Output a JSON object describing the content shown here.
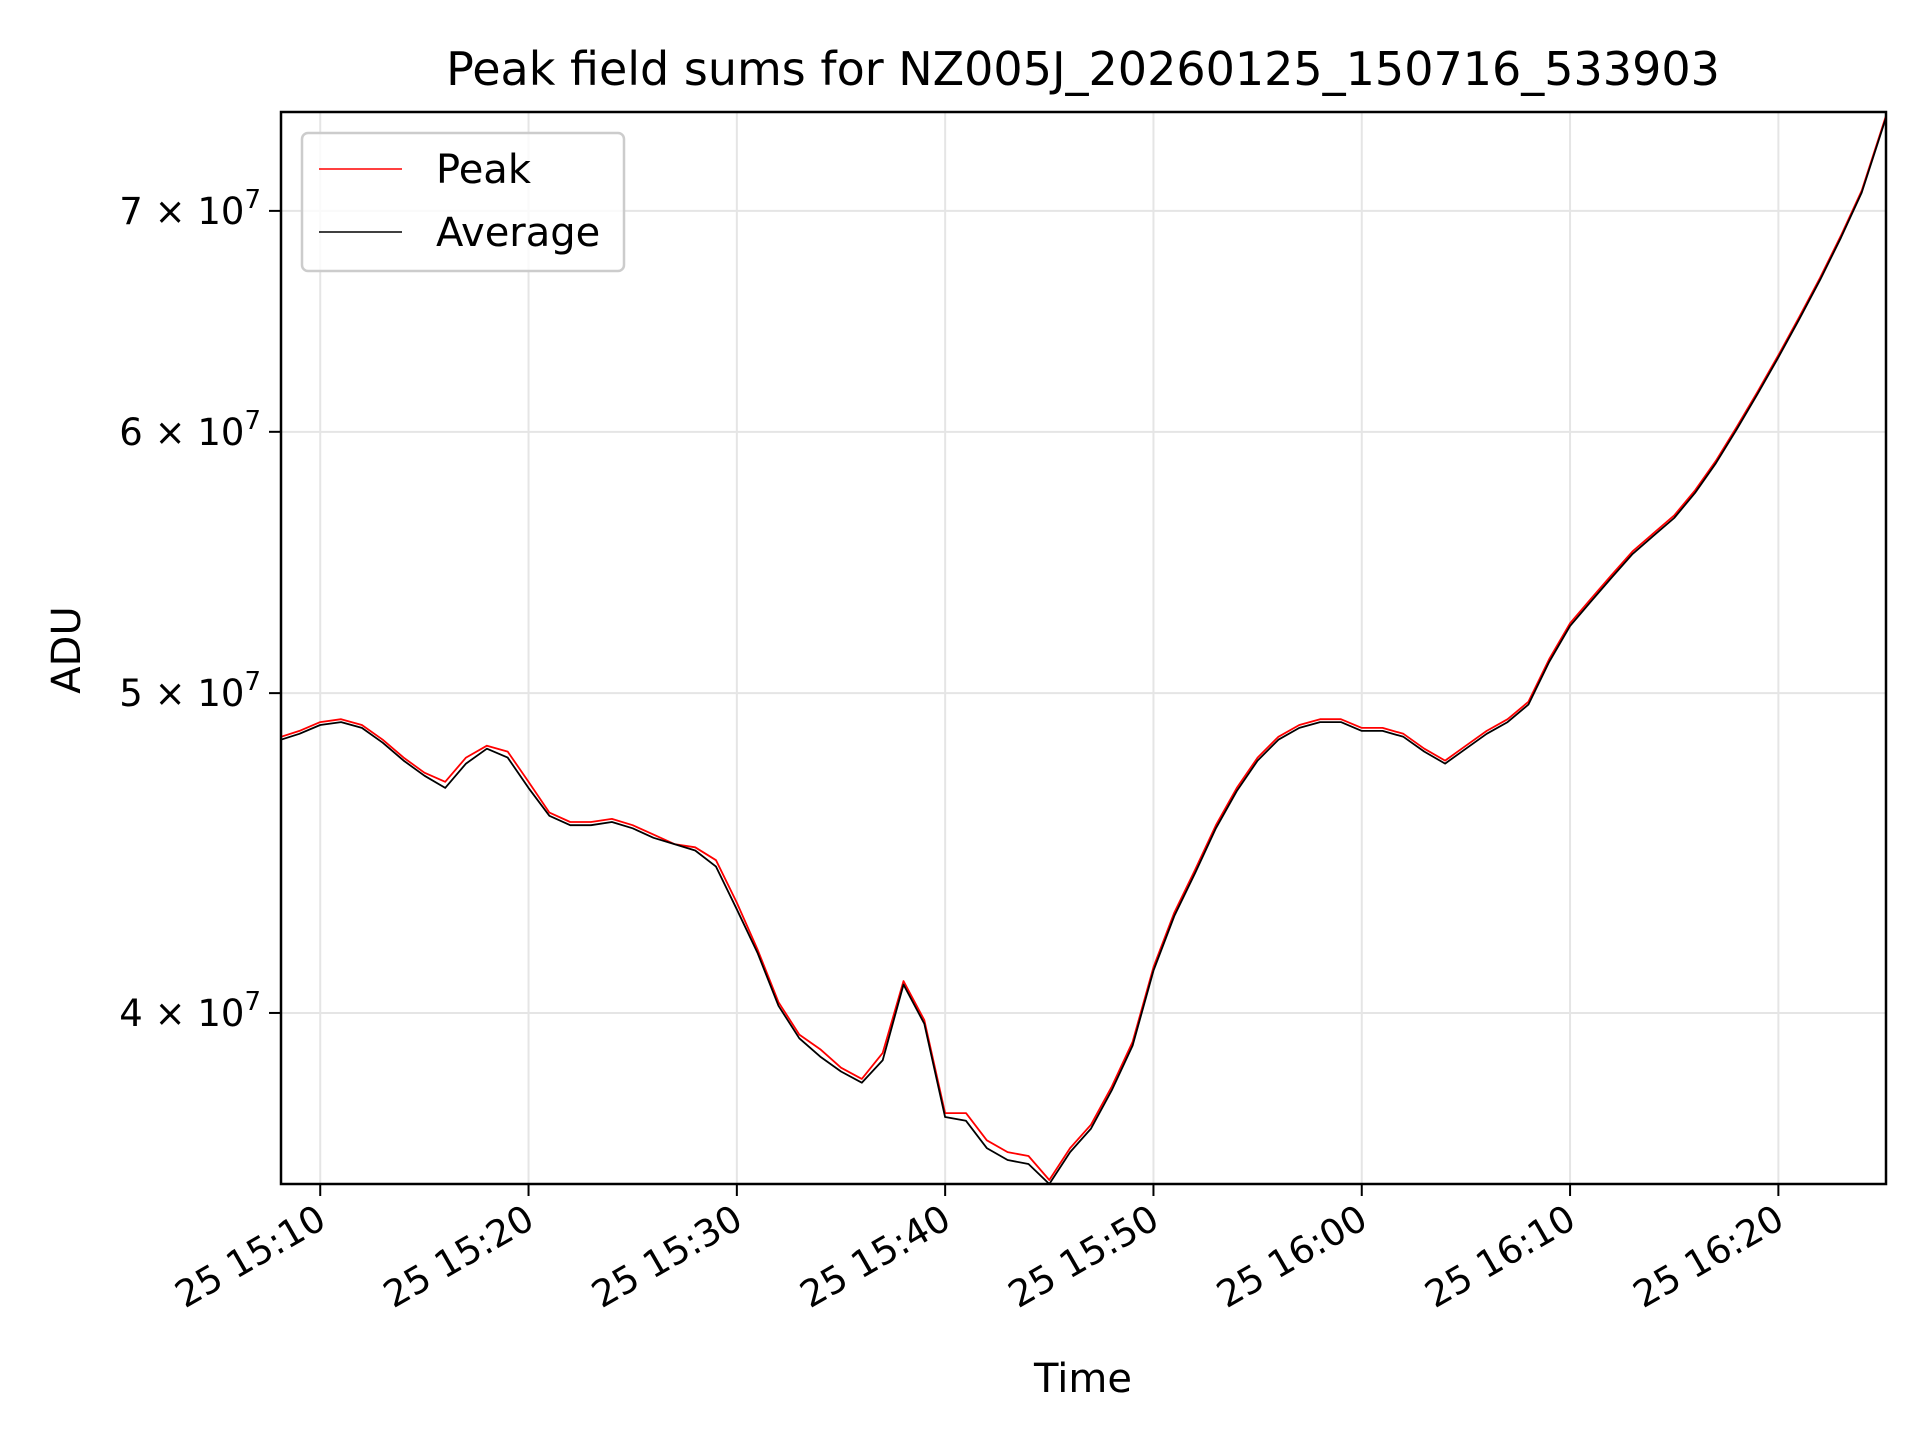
{
  "chart_data": {
    "type": "line",
    "title": "Peak field sums for NZ005J_20260125_150716_533903",
    "xlabel": "Time",
    "ylabel": "ADU",
    "y_scale": "log",
    "xlim": [
      "2026-01-25 15:08:07",
      "2026-01-25 16:25:10"
    ],
    "ylim": [
      35500000,
      75000000
    ],
    "grid": true,
    "legend_position": "upper left",
    "x_ticks": [
      "2026-01-25 15:10",
      "2026-01-25 15:20",
      "2026-01-25 15:30",
      "2026-01-25 15:40",
      "2026-01-25 15:50",
      "2026-01-25 16:00",
      "2026-01-25 16:10",
      "2026-01-25 16:20"
    ],
    "x_tick_labels": [
      "25 15:10",
      "25 15:20",
      "25 15:30",
      "25 15:40",
      "25 15:50",
      "25 16:00",
      "25 16:10",
      "25 16:20"
    ],
    "y_ticks": [
      40000000,
      50000000,
      60000000,
      70000000
    ],
    "y_tick_labels": [
      {
        "mantissa": "4",
        "exponent": "7"
      },
      {
        "mantissa": "5",
        "exponent": "7"
      },
      {
        "mantissa": "6",
        "exponent": "7"
      },
      {
        "mantissa": "7",
        "exponent": "7"
      }
    ],
    "series": [
      {
        "name": "Peak",
        "color": "#ff0000",
        "x": [
          "2026-01-25 15:08:07",
          "2026-01-25 15:09:00",
          "2026-01-25 15:10:00",
          "2026-01-25 15:11:00",
          "2026-01-25 15:12:00",
          "2026-01-25 15:13:00",
          "2026-01-25 15:14:00",
          "2026-01-25 15:15:00",
          "2026-01-25 15:16:00",
          "2026-01-25 15:17:00",
          "2026-01-25 15:18:00",
          "2026-01-25 15:19:00",
          "2026-01-25 15:20:00",
          "2026-01-25 15:21:00",
          "2026-01-25 15:22:00",
          "2026-01-25 15:23:00",
          "2026-01-25 15:24:00",
          "2026-01-25 15:25:00",
          "2026-01-25 15:26:00",
          "2026-01-25 15:27:00",
          "2026-01-25 15:28:00",
          "2026-01-25 15:29:00",
          "2026-01-25 15:30:00",
          "2026-01-25 15:31:00",
          "2026-01-25 15:32:00",
          "2026-01-25 15:33:00",
          "2026-01-25 15:34:00",
          "2026-01-25 15:35:00",
          "2026-01-25 15:36:00",
          "2026-01-25 15:37:00",
          "2026-01-25 15:38:00",
          "2026-01-25 15:39:00",
          "2026-01-25 15:40:00",
          "2026-01-25 15:41:00",
          "2026-01-25 15:42:00",
          "2026-01-25 15:43:00",
          "2026-01-25 15:44:00",
          "2026-01-25 15:45:00",
          "2026-01-25 15:46:00",
          "2026-01-25 15:47:00",
          "2026-01-25 15:48:00",
          "2026-01-25 15:49:00",
          "2026-01-25 15:50:00",
          "2026-01-25 15:51:00",
          "2026-01-25 15:52:00",
          "2026-01-25 15:53:00",
          "2026-01-25 15:54:00",
          "2026-01-25 15:55:00",
          "2026-01-25 15:56:00",
          "2026-01-25 15:57:00",
          "2026-01-25 15:58:00",
          "2026-01-25 15:59:00",
          "2026-01-25 16:00:00",
          "2026-01-25 16:01:00",
          "2026-01-25 16:02:00",
          "2026-01-25 16:03:00",
          "2026-01-25 16:04:00",
          "2026-01-25 16:05:00",
          "2026-01-25 16:06:00",
          "2026-01-25 16:07:00",
          "2026-01-25 16:08:00",
          "2026-01-25 16:09:00",
          "2026-01-25 16:10:00",
          "2026-01-25 16:11:00",
          "2026-01-25 16:12:00",
          "2026-01-25 16:13:00",
          "2026-01-25 16:14:00",
          "2026-01-25 16:15:00",
          "2026-01-25 16:16:00",
          "2026-01-25 16:17:00",
          "2026-01-25 16:18:00",
          "2026-01-25 16:19:00",
          "2026-01-25 16:20:00",
          "2026-01-25 16:21:00",
          "2026-01-25 16:22:00",
          "2026-01-25 16:23:00",
          "2026-01-25 16:24:00",
          "2026-01-25 16:25:10"
        ],
        "y": [
          48500000,
          48700000,
          49000000,
          49100000,
          48900000,
          48400000,
          47800000,
          47300000,
          47000000,
          47800000,
          48200000,
          48000000,
          47000000,
          46000000,
          45700000,
          45700000,
          45800000,
          45600000,
          45300000,
          45000000,
          44900000,
          44500000,
          43200000,
          41800000,
          40300000,
          39400000,
          39000000,
          38500000,
          38200000,
          38900000,
          40900000,
          39800000,
          37300000,
          37300000,
          36600000,
          36300000,
          36200000,
          35600000,
          36400000,
          37000000,
          38000000,
          39200000,
          41300000,
          42900000,
          44200000,
          45600000,
          46800000,
          47800000,
          48500000,
          48900000,
          49100000,
          49100000,
          48800000,
          48800000,
          48600000,
          48100000,
          47700000,
          48200000,
          48700000,
          49100000,
          49700000,
          51200000,
          52500000,
          53400000,
          54300000,
          55200000,
          55900000,
          56600000,
          57600000,
          58800000,
          60200000,
          61700000,
          63300000,
          65000000,
          66800000,
          68800000,
          71000000,
          74800000
        ]
      },
      {
        "name": "Average",
        "color": "#000000",
        "x": [
          "2026-01-25 15:08:07",
          "2026-01-25 15:09:00",
          "2026-01-25 15:10:00",
          "2026-01-25 15:11:00",
          "2026-01-25 15:12:00",
          "2026-01-25 15:13:00",
          "2026-01-25 15:14:00",
          "2026-01-25 15:15:00",
          "2026-01-25 15:16:00",
          "2026-01-25 15:17:00",
          "2026-01-25 15:18:00",
          "2026-01-25 15:19:00",
          "2026-01-25 15:20:00",
          "2026-01-25 15:21:00",
          "2026-01-25 15:22:00",
          "2026-01-25 15:23:00",
          "2026-01-25 15:24:00",
          "2026-01-25 15:25:00",
          "2026-01-25 15:26:00",
          "2026-01-25 15:27:00",
          "2026-01-25 15:28:00",
          "2026-01-25 15:29:00",
          "2026-01-25 15:30:00",
          "2026-01-25 15:31:00",
          "2026-01-25 15:32:00",
          "2026-01-25 15:33:00",
          "2026-01-25 15:34:00",
          "2026-01-25 15:35:00",
          "2026-01-25 15:36:00",
          "2026-01-25 15:37:00",
          "2026-01-25 15:38:00",
          "2026-01-25 15:39:00",
          "2026-01-25 15:40:00",
          "2026-01-25 15:41:00",
          "2026-01-25 15:42:00",
          "2026-01-25 15:43:00",
          "2026-01-25 15:44:00",
          "2026-01-25 15:45:00",
          "2026-01-25 15:46:00",
          "2026-01-25 15:47:00",
          "2026-01-25 15:48:00",
          "2026-01-25 15:49:00",
          "2026-01-25 15:50:00",
          "2026-01-25 15:51:00",
          "2026-01-25 15:52:00",
          "2026-01-25 15:53:00",
          "2026-01-25 15:54:00",
          "2026-01-25 15:55:00",
          "2026-01-25 15:56:00",
          "2026-01-25 15:57:00",
          "2026-01-25 15:58:00",
          "2026-01-25 15:59:00",
          "2026-01-25 16:00:00",
          "2026-01-25 16:01:00",
          "2026-01-25 16:02:00",
          "2026-01-25 16:03:00",
          "2026-01-25 16:04:00",
          "2026-01-25 16:05:00",
          "2026-01-25 16:06:00",
          "2026-01-25 16:07:00",
          "2026-01-25 16:08:00",
          "2026-01-25 16:09:00",
          "2026-01-25 16:10:00",
          "2026-01-25 16:11:00",
          "2026-01-25 16:12:00",
          "2026-01-25 16:13:00",
          "2026-01-25 16:14:00",
          "2026-01-25 16:15:00",
          "2026-01-25 16:16:00",
          "2026-01-25 16:17:00",
          "2026-01-25 16:18:00",
          "2026-01-25 16:19:00",
          "2026-01-25 16:20:00",
          "2026-01-25 16:21:00",
          "2026-01-25 16:22:00",
          "2026-01-25 16:23:00",
          "2026-01-25 16:24:00",
          "2026-01-25 16:25:10"
        ],
        "y": [
          48400000,
          48600000,
          48900000,
          49000000,
          48800000,
          48300000,
          47700000,
          47200000,
          46800000,
          47600000,
          48100000,
          47800000,
          46800000,
          45900000,
          45600000,
          45600000,
          45700000,
          45500000,
          45200000,
          45000000,
          44800000,
          44300000,
          43000000,
          41700000,
          40200000,
          39300000,
          38800000,
          38400000,
          38100000,
          38700000,
          40800000,
          39700000,
          37200000,
          37100000,
          36400000,
          36100000,
          36000000,
          35500000,
          36300000,
          36900000,
          37900000,
          39100000,
          41200000,
          42800000,
          44100000,
          45500000,
          46700000,
          47700000,
          48400000,
          48800000,
          49000000,
          49000000,
          48700000,
          48700000,
          48500000,
          48000000,
          47600000,
          48100000,
          48600000,
          49000000,
          49600000,
          51100000,
          52400000,
          53300000,
          54200000,
          55100000,
          55800000,
          56500000,
          57500000,
          58700000,
          60100000,
          61600000,
          63200000,
          64900000,
          66700000,
          68700000,
          70900000,
          74700000
        ]
      }
    ]
  }
}
